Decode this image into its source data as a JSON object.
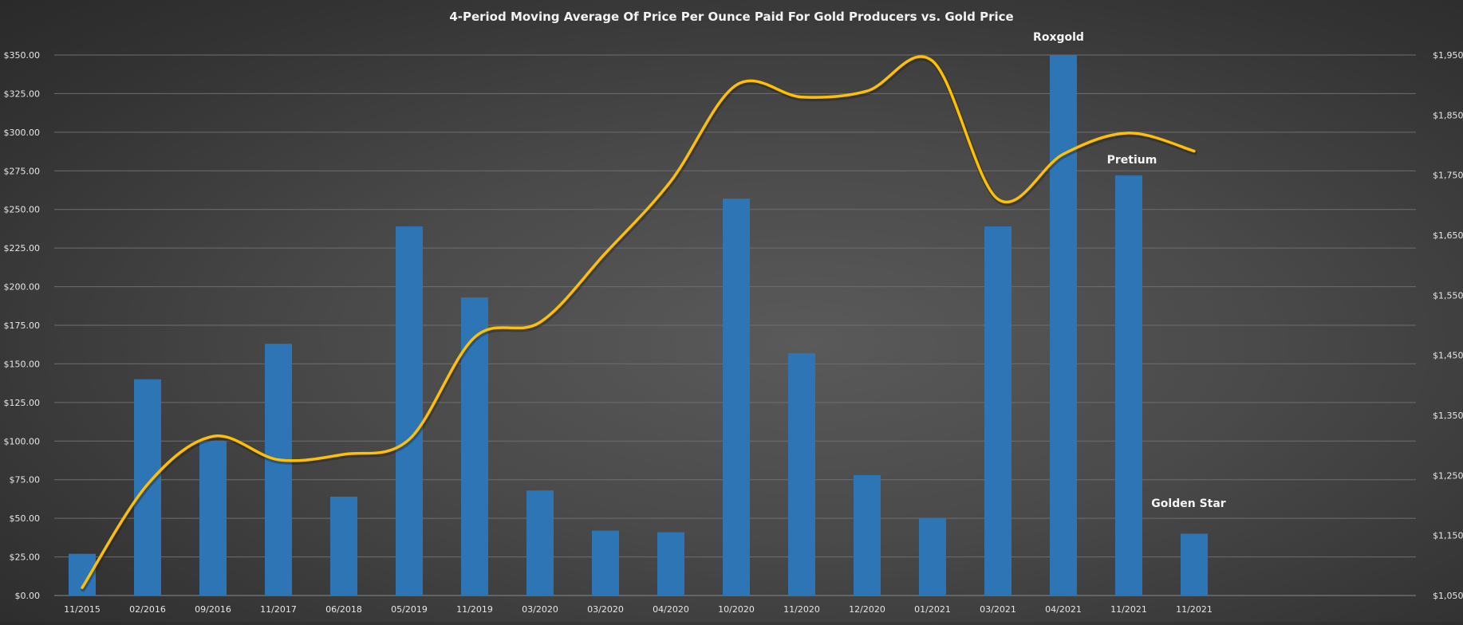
{
  "chart_data": {
    "type": "bar",
    "title": "4-Period Moving Average Of Price Per Ounce Paid For Gold Producers vs. Gold Price",
    "categories": [
      "11/2015",
      "02/2016",
      "09/2016",
      "11/2017",
      "06/2018",
      "05/2019",
      "11/2019",
      "03/2020",
      "03/2020",
      "04/2020",
      "10/2020",
      "11/2020",
      "12/2020",
      "01/2021",
      "03/2021",
      "04/2021",
      "11/2021",
      "11/2021"
    ],
    "series": [
      {
        "type": "bar",
        "axis": "left",
        "color": "#2e75b6",
        "values": [
          27,
          140,
          100,
          163,
          64,
          239,
          193,
          68,
          42,
          41,
          257,
          157,
          78,
          50,
          239,
          350,
          272,
          40
        ]
      },
      {
        "type": "line",
        "axis": "right",
        "color": "#ffc000",
        "smooth": true,
        "values": [
          1063,
          1235,
          1315,
          1276,
          1285,
          1310,
          1480,
          1505,
          1620,
          1740,
          1900,
          1880,
          1890,
          1940,
          1710,
          1785,
          1820,
          1790
        ]
      }
    ],
    "left_axis": {
      "ylim": [
        0,
        350
      ],
      "ticks": [
        "$0.00",
        "$25.00",
        "$50.00",
        "$75.00",
        "$100.00",
        "$125.00",
        "$150.00",
        "$175.00",
        "$200.00",
        "$225.00",
        "$250.00",
        "$275.00",
        "$300.00",
        "$325.00",
        "$350.00"
      ]
    },
    "right_axis": {
      "ylim": [
        1050,
        1950
      ],
      "ticks": [
        "$1,050",
        "$1,150",
        "$1,250",
        "$1,350",
        "$1,450",
        "$1,550",
        "$1,650",
        "$1,750",
        "$1,850",
        "$1,950"
      ]
    },
    "annotations": [
      {
        "text": "Roxgold",
        "category_index": 15
      },
      {
        "text": "Pretium",
        "category_index": 16
      },
      {
        "text": "Golden Star",
        "category_index": 17
      }
    ],
    "grid": true,
    "legend": "none"
  }
}
